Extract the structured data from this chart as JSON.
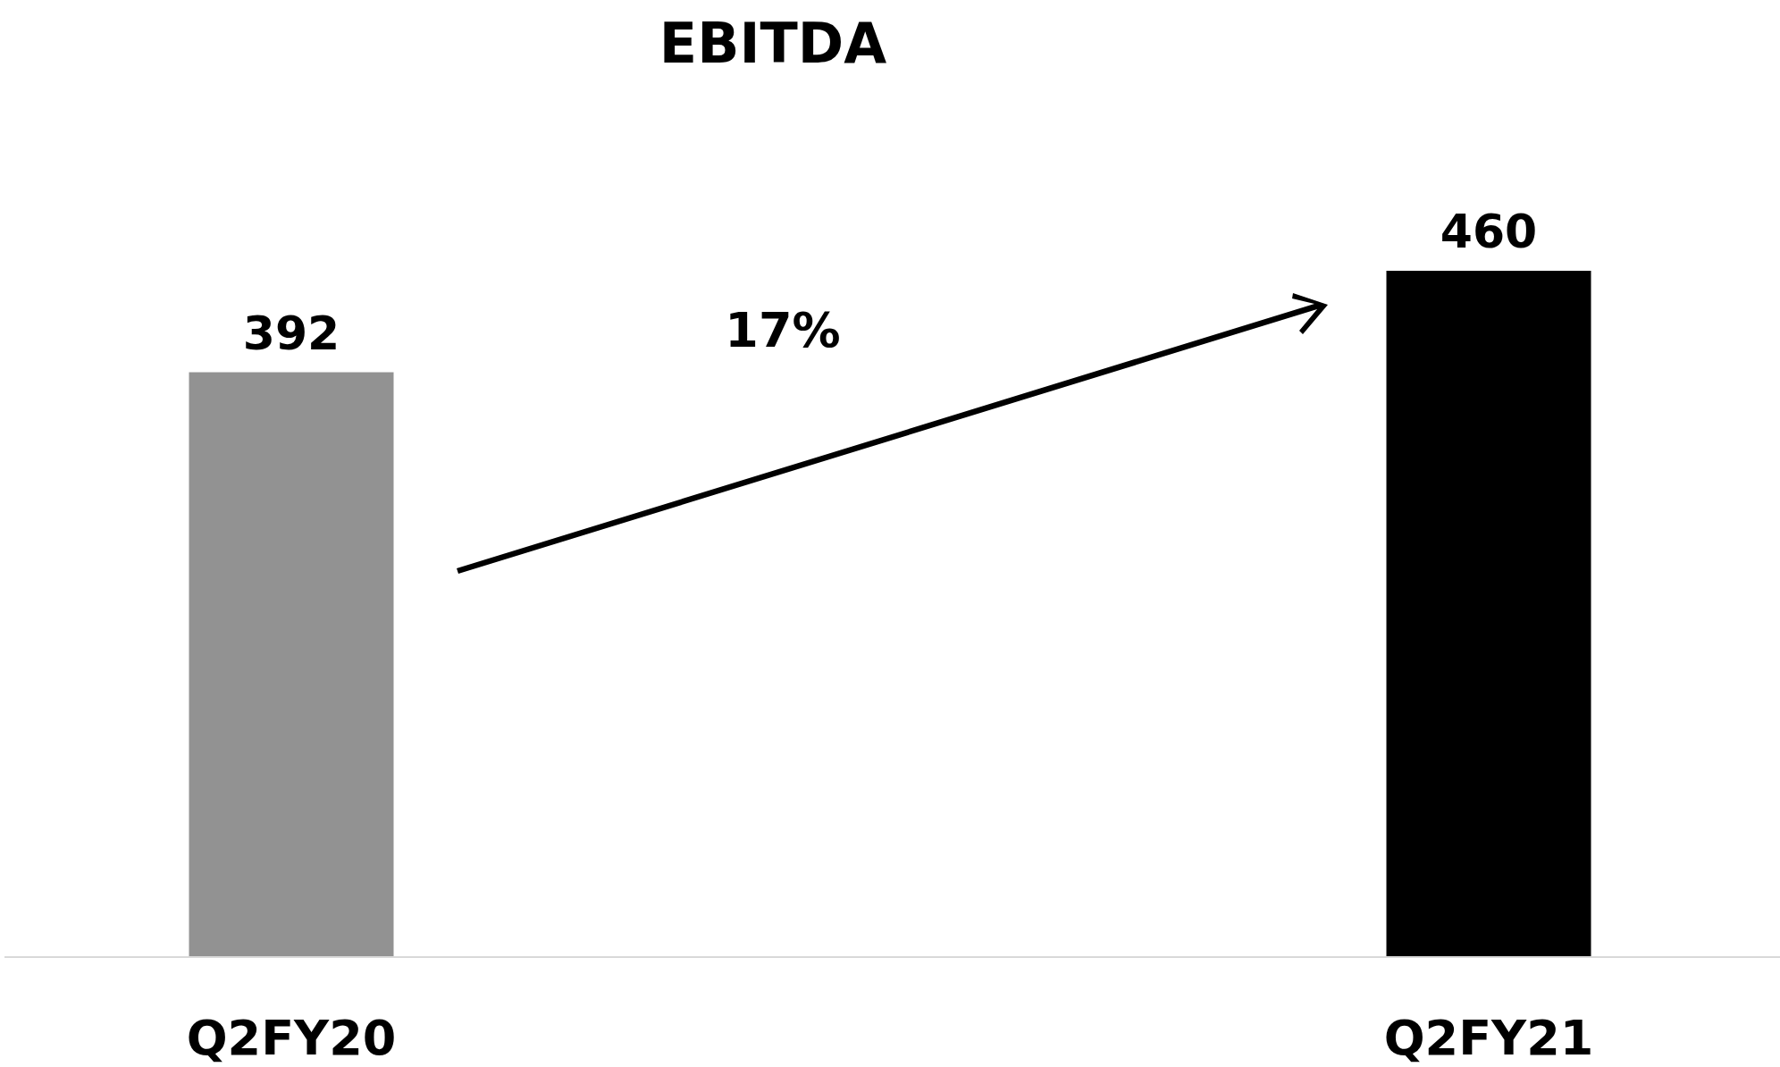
{
  "chart_data": {
    "type": "bar",
    "title": "EBITDA",
    "categories": [
      "Q2FY20",
      "Q2FY21"
    ],
    "values": [
      392,
      460
    ],
    "colors": [
      "#929292",
      "#000000"
    ],
    "data_labels": true,
    "annotations": [
      "17%"
    ]
  }
}
